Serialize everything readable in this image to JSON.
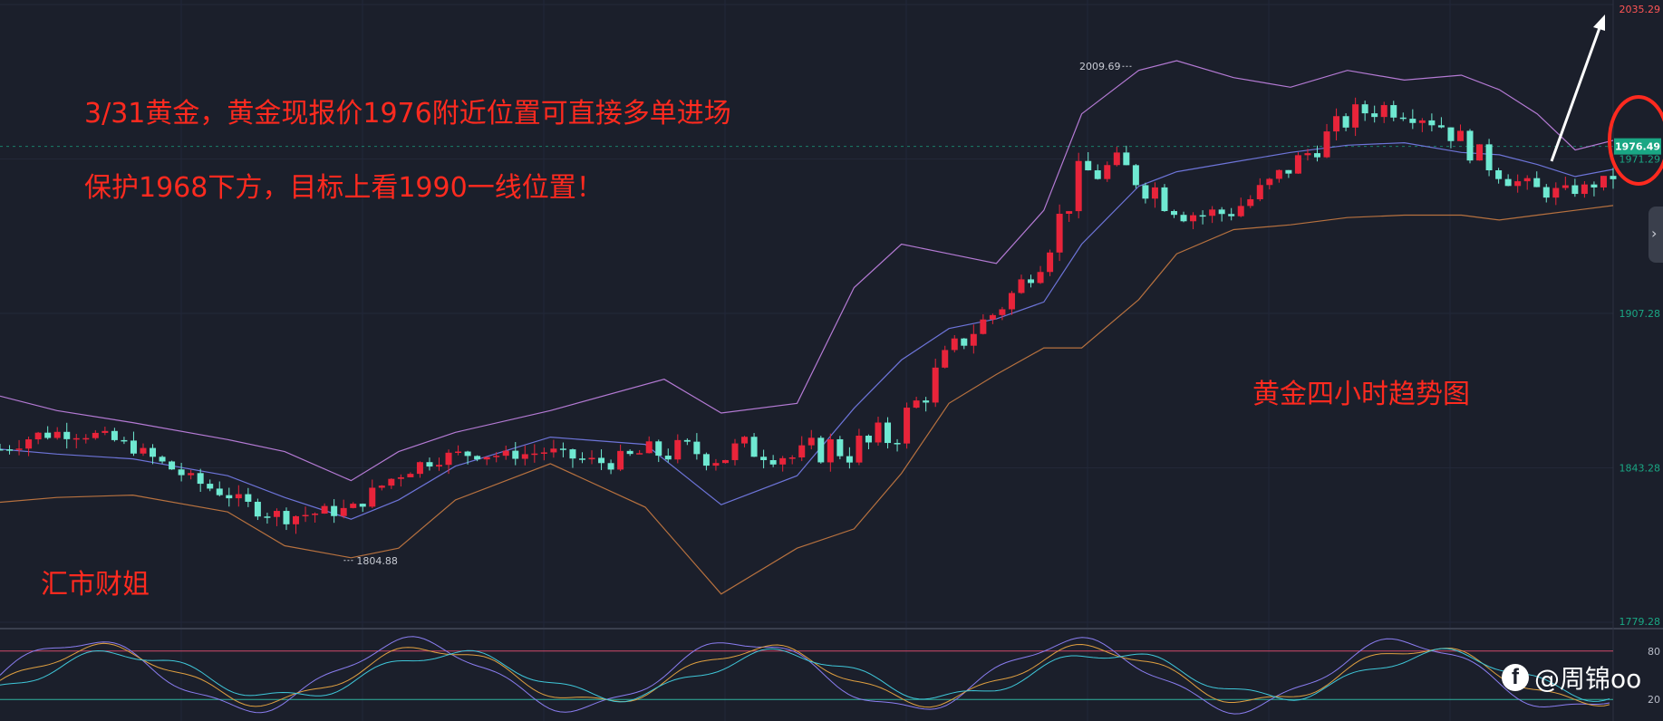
{
  "chart_data": {
    "type": "candlestick",
    "title": "黄金四小时趋势图",
    "timeframe": "4H",
    "ylim": [
      1779.28,
      2035.29
    ],
    "price_ticks": [
      2035.29,
      1971.29,
      1907.28,
      1843.28,
      1779.28
    ],
    "last_price": "1976.49",
    "high_marker": "2009.69",
    "low_marker": "1804.88",
    "indicators": [
      "Bollinger Bands (upper / middle / lower)",
      "KDJ oscillator"
    ],
    "bollinger": {
      "upper": [
        [
          0,
          1873
        ],
        [
          60,
          1867
        ],
        [
          140,
          1862
        ],
        [
          240,
          1855
        ],
        [
          300,
          1850
        ],
        [
          370,
          1838
        ],
        [
          420,
          1850
        ],
        [
          480,
          1858
        ],
        [
          580,
          1867
        ],
        [
          700,
          1880
        ],
        [
          760,
          1866
        ],
        [
          840,
          1870
        ],
        [
          900,
          1918
        ],
        [
          950,
          1936
        ],
        [
          1000,
          1932
        ],
        [
          1050,
          1928
        ],
        [
          1100,
          1950
        ],
        [
          1140,
          1990
        ],
        [
          1200,
          2008
        ],
        [
          1240,
          2012
        ],
        [
          1300,
          2005
        ],
        [
          1360,
          2001
        ],
        [
          1420,
          2008
        ],
        [
          1480,
          2004
        ],
        [
          1540,
          2006
        ],
        [
          1580,
          2000
        ],
        [
          1620,
          1990
        ],
        [
          1660,
          1975
        ],
        [
          1700,
          1979
        ]
      ],
      "middle": [
        [
          0,
          1851
        ],
        [
          60,
          1849
        ],
        [
          140,
          1847
        ],
        [
          240,
          1840
        ],
        [
          300,
          1831
        ],
        [
          370,
          1822
        ],
        [
          420,
          1830
        ],
        [
          480,
          1844
        ],
        [
          580,
          1856
        ],
        [
          680,
          1853
        ],
        [
          760,
          1828
        ],
        [
          840,
          1840
        ],
        [
          900,
          1868
        ],
        [
          950,
          1888
        ],
        [
          1000,
          1901
        ],
        [
          1050,
          1905
        ],
        [
          1100,
          1912
        ],
        [
          1140,
          1936
        ],
        [
          1200,
          1960
        ],
        [
          1240,
          1966
        ],
        [
          1300,
          1970
        ],
        [
          1360,
          1974
        ],
        [
          1420,
          1977
        ],
        [
          1480,
          1978
        ],
        [
          1540,
          1974
        ],
        [
          1580,
          1973
        ],
        [
          1620,
          1969
        ],
        [
          1660,
          1964
        ],
        [
          1700,
          1967
        ]
      ],
      "lower": [
        [
          0,
          1829
        ],
        [
          60,
          1831
        ],
        [
          140,
          1832
        ],
        [
          240,
          1825
        ],
        [
          300,
          1811
        ],
        [
          370,
          1806
        ],
        [
          420,
          1810
        ],
        [
          480,
          1830
        ],
        [
          580,
          1845
        ],
        [
          680,
          1827
        ],
        [
          760,
          1791
        ],
        [
          840,
          1810
        ],
        [
          900,
          1818
        ],
        [
          950,
          1841
        ],
        [
          1000,
          1870
        ],
        [
          1050,
          1882
        ],
        [
          1100,
          1893
        ],
        [
          1140,
          1893
        ],
        [
          1200,
          1913
        ],
        [
          1240,
          1932
        ],
        [
          1300,
          1942
        ],
        [
          1360,
          1944
        ],
        [
          1420,
          1947
        ],
        [
          1480,
          1948
        ],
        [
          1540,
          1948
        ],
        [
          1580,
          1946
        ],
        [
          1620,
          1948
        ],
        [
          1660,
          1950
        ],
        [
          1700,
          1952
        ]
      ]
    },
    "kdj_levels": [
      80,
      20
    ]
  },
  "annotations": {
    "line1": "3/31黄金，黄金现报价1976附近位置可直接多单进场",
    "line2": "保护1968下方，目标上看1990一线位置！",
    "title": "黄金四小时趋势图",
    "author": "汇市财姐"
  },
  "watermark": {
    "logo": "f",
    "handle": "@周锦oo"
  },
  "colors": {
    "background": "#1b1f2b",
    "up": "#e8243a",
    "down": "#6fe9d2",
    "upper_band": "#b47ad4",
    "middle_band": "#6d74d8",
    "lower_band": "#b7713f",
    "annotation": "#ff2a1f",
    "price_badge": "#1aa784"
  }
}
